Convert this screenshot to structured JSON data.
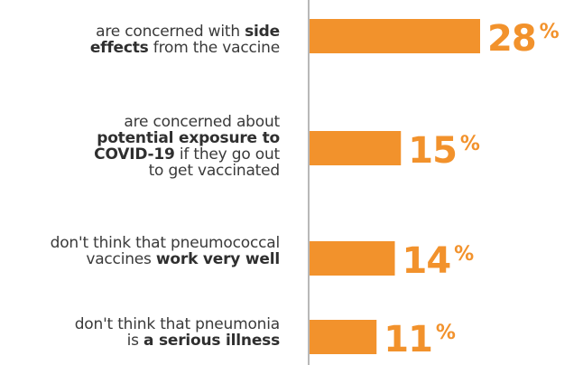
{
  "chart_data": {
    "type": "bar",
    "orientation": "horizontal",
    "color": "#f2922c",
    "value_label_color": "#f2922c",
    "categories": [
      {
        "segments": [
          {
            "text": "are concerned with ",
            "bold": false
          },
          {
            "text": "side",
            "bold": true
          },
          {
            "text": "\n",
            "bold": false
          },
          {
            "text": "effects",
            "bold": true
          },
          {
            "text": " from the vaccine",
            "bold": false
          }
        ]
      },
      {
        "segments": [
          {
            "text": "are concerned about",
            "bold": false
          },
          {
            "text": "\n",
            "bold": false
          },
          {
            "text": "potential exposure to",
            "bold": true
          },
          {
            "text": "\n",
            "bold": false
          },
          {
            "text": "COVID-19",
            "bold": true
          },
          {
            "text": " if they go out",
            "bold": false
          },
          {
            "text": "\n",
            "bold": false
          },
          {
            "text": "to get vaccinated",
            "bold": false
          }
        ]
      },
      {
        "segments": [
          {
            "text": "don't think that pneumococcal",
            "bold": false
          },
          {
            "text": "\n",
            "bold": false
          },
          {
            "text": "vaccines ",
            "bold": false
          },
          {
            "text": "work very well",
            "bold": true
          }
        ]
      },
      {
        "segments": [
          {
            "text": "don't think that pneumonia",
            "bold": false
          },
          {
            "text": "\n",
            "bold": false
          },
          {
            "text": "is ",
            "bold": false
          },
          {
            "text": "a serious illness",
            "bold": true
          }
        ]
      }
    ],
    "values": [
      28,
      15,
      14,
      11
    ],
    "value_labels": [
      "28",
      "15",
      "14",
      "11"
    ],
    "unit": "%",
    "xlim": [
      0,
      30
    ]
  }
}
